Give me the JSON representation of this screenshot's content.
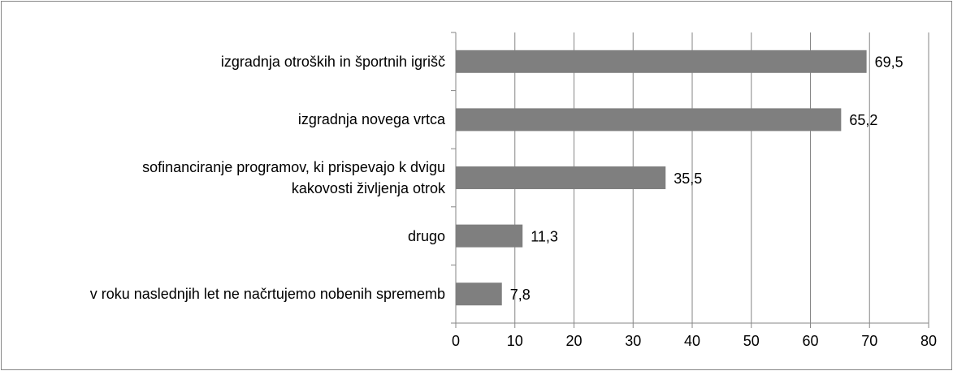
{
  "chart_data": {
    "type": "bar",
    "orientation": "horizontal",
    "categories": [
      "izgradnja otroških in športnih igrišč",
      "izgradnja novega vrtca",
      "sofinanciranje programov, ki prispevajo k dvigu kakovosti življenja otrok",
      "drugo",
      "v roku naslednjih let ne načrtujemo nobenih sprememb"
    ],
    "values": [
      69.5,
      65.2,
      35.5,
      11.3,
      7.8
    ],
    "value_labels": [
      "69,5",
      "65,2",
      "35,5",
      "11,3",
      "7,8"
    ],
    "color": "#7f7f7f",
    "xlim": [
      0,
      80
    ],
    "xticks": [
      0,
      10,
      20,
      30,
      40,
      50,
      60,
      70,
      80
    ],
    "grid": true
  }
}
